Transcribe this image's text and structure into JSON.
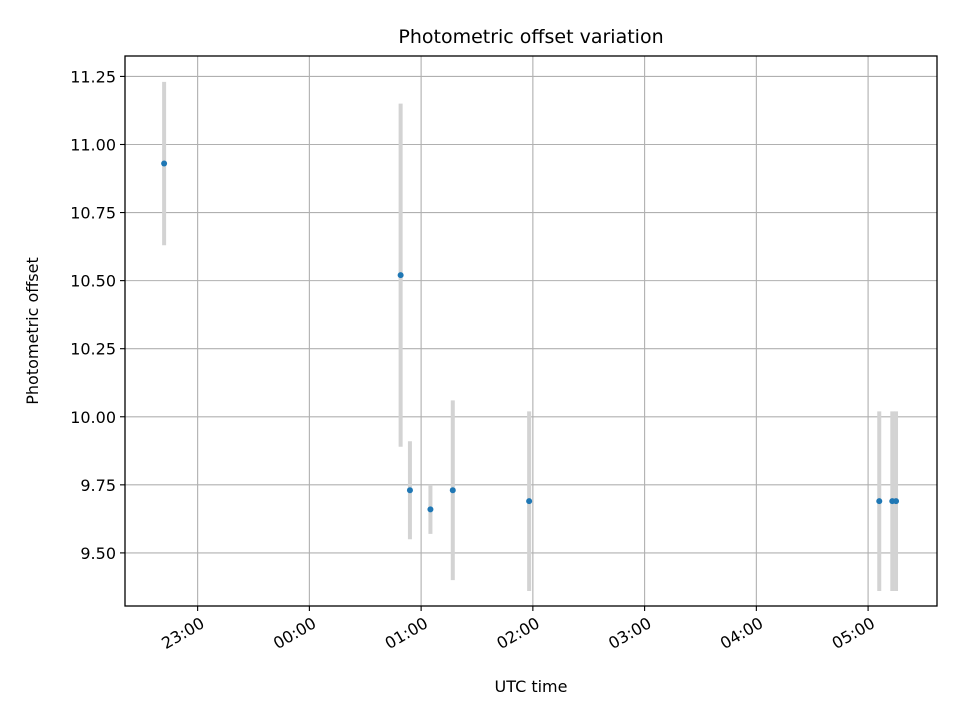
{
  "chart_data": {
    "type": "scatter",
    "title": "Photometric offset variation",
    "xlabel": "UTC time",
    "ylabel": "Photometric offset",
    "x_axis_type": "time",
    "xlim": [
      "2023-01-01T22:21",
      "2023-01-02T05:37"
    ],
    "ylim": [
      9.305,
      11.325
    ],
    "grid": true,
    "xticks": [
      {
        "t": "2023-01-01T23:00",
        "label": "23:00"
      },
      {
        "t": "2023-01-02T00:00",
        "label": "00:00"
      },
      {
        "t": "2023-01-02T01:00",
        "label": "01:00"
      },
      {
        "t": "2023-01-02T02:00",
        "label": "02:00"
      },
      {
        "t": "2023-01-02T03:00",
        "label": "03:00"
      },
      {
        "t": "2023-01-02T04:00",
        "label": "04:00"
      },
      {
        "t": "2023-01-02T05:00",
        "label": "05:00"
      }
    ],
    "yticks": [
      {
        "v": 9.5,
        "label": "9.50"
      },
      {
        "v": 9.75,
        "label": "9.75"
      },
      {
        "v": 10.0,
        "label": "10.00"
      },
      {
        "v": 10.25,
        "label": "10.25"
      },
      {
        "v": 10.5,
        "label": "10.50"
      },
      {
        "v": 10.75,
        "label": "10.75"
      },
      {
        "v": 11.0,
        "label": "11.00"
      },
      {
        "v": 11.25,
        "label": "11.25"
      }
    ],
    "points": [
      {
        "t": "2023-01-01T22:42",
        "y": 10.93,
        "yerr": 0.3
      },
      {
        "t": "2023-01-02T00:49",
        "y": 10.52,
        "yerr": 0.63
      },
      {
        "t": "2023-01-02T00:54",
        "y": 9.73,
        "yerr": 0.18
      },
      {
        "t": "2023-01-02T01:05",
        "y": 9.66,
        "yerr": 0.09
      },
      {
        "t": "2023-01-02T01:17",
        "y": 9.73,
        "yerr": 0.33
      },
      {
        "t": "2023-01-02T01:58",
        "y": 9.69,
        "yerr": 0.33
      },
      {
        "t": "2023-01-02T05:06",
        "y": 9.69,
        "yerr": 0.33
      },
      {
        "t": "2023-01-02T05:13",
        "y": 9.69,
        "yerr": 0.33
      },
      {
        "t": "2023-01-02T05:15",
        "y": 9.69,
        "yerr": 0.33
      }
    ],
    "colors": {
      "marker": "#1f77b4",
      "errorbar": "#d3d3d3",
      "grid": "#b0b0b0",
      "frame": "#000000"
    }
  }
}
